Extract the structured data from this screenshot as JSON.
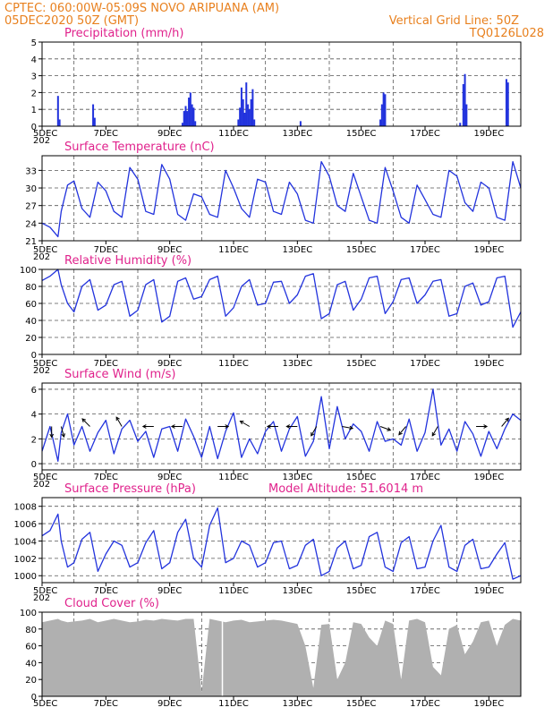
{
  "header": {
    "line1": "CPTEC:   060:00W-05:09S   NOVO ARIPUANA (AM)",
    "line2": "05DEC2020 50Z (GMT)",
    "grid_note": "Vertical Grid Line: 50Z",
    "code": "TQ0126L028"
  },
  "x_axis": {
    "tick_labels": [
      "5DEC",
      "7DEC",
      "9DEC",
      "11DEC",
      "13DEC",
      "15DEC",
      "17DEC",
      "19DEC"
    ],
    "tick_days": [
      0,
      2,
      4,
      6,
      8,
      10,
      12,
      14
    ],
    "vertical_grid_days": [
      1,
      3,
      5,
      7,
      9,
      11,
      13
    ],
    "x_range_days": [
      0,
      15
    ],
    "year_fragment": "202"
  },
  "colors": {
    "line": "#2233dd",
    "bars": "#2233dd",
    "cloud": "#b0b0b0",
    "title": "#e0228c",
    "header": "#e8801e",
    "arrows": "#000000"
  },
  "chart_data": [
    {
      "id": "precip",
      "type": "bar",
      "title": "Precipitation (mm/h)",
      "ylim": [
        0,
        5
      ],
      "yticks": [
        0,
        1,
        2,
        3,
        4,
        5
      ],
      "x_unit": "days since 05DEC2020 00Z",
      "points": [
        [
          0.5,
          1.8
        ],
        [
          0.55,
          0.4
        ],
        [
          1.6,
          1.3
        ],
        [
          1.65,
          0.5
        ],
        [
          4.4,
          0.2
        ],
        [
          4.45,
          0.9
        ],
        [
          4.5,
          1.2
        ],
        [
          4.55,
          0.9
        ],
        [
          4.6,
          1.7
        ],
        [
          4.65,
          2.0
        ],
        [
          4.7,
          1.3
        ],
        [
          4.75,
          1.1
        ],
        [
          4.8,
          0.3
        ],
        [
          6.15,
          0.4
        ],
        [
          6.2,
          1.1
        ],
        [
          6.25,
          2.3
        ],
        [
          6.3,
          1.6
        ],
        [
          6.35,
          0.8
        ],
        [
          6.4,
          2.6
        ],
        [
          6.45,
          1.3
        ],
        [
          6.5,
          1.0
        ],
        [
          6.55,
          1.6
        ],
        [
          6.6,
          2.2
        ],
        [
          6.65,
          0.4
        ],
        [
          8.1,
          0.3
        ],
        [
          10.6,
          0.4
        ],
        [
          10.65,
          1.3
        ],
        [
          10.7,
          2.0
        ],
        [
          10.75,
          1.9
        ],
        [
          13.1,
          0.2
        ],
        [
          13.2,
          2.5
        ],
        [
          13.25,
          3.1
        ],
        [
          13.3,
          1.3
        ],
        [
          14.55,
          2.8
        ],
        [
          14.6,
          2.6
        ]
      ]
    },
    {
      "id": "temp",
      "type": "line",
      "title": "Surface Temperature (nC)",
      "ylim": [
        21,
        35.5
      ],
      "yticks": [
        21,
        24,
        27,
        30,
        33
      ],
      "x": [
        0.0,
        0.25,
        0.5,
        0.6,
        0.8,
        1.0,
        1.25,
        1.5,
        1.75,
        2.0,
        2.25,
        2.5,
        2.75,
        3.0,
        3.25,
        3.5,
        3.75,
        4.0,
        4.25,
        4.5,
        4.75,
        5.0,
        5.25,
        5.5,
        5.75,
        6.0,
        6.25,
        6.5,
        6.75,
        7.0,
        7.25,
        7.5,
        7.75,
        8.0,
        8.25,
        8.5,
        8.75,
        9.0,
        9.25,
        9.5,
        9.75,
        10.0,
        10.25,
        10.5,
        10.75,
        11.0,
        11.25,
        11.5,
        11.75,
        12.0,
        12.25,
        12.5,
        12.75,
        13.0,
        13.25,
        13.5,
        13.75,
        14.0,
        14.25,
        14.5,
        14.75,
        15.0
      ],
      "y": [
        24.0,
        23.3,
        21.7,
        26.0,
        30.5,
        31.2,
        26.5,
        25.0,
        31.0,
        29.5,
        26.0,
        25.0,
        33.5,
        31.5,
        26.0,
        25.5,
        34.0,
        31.5,
        25.5,
        24.5,
        29.0,
        28.5,
        25.5,
        25.0,
        33.0,
        30.0,
        26.5,
        25.0,
        31.5,
        31.0,
        26.0,
        25.5,
        31.0,
        29.0,
        24.5,
        24.0,
        34.5,
        32.0,
        27.0,
        26.0,
        32.5,
        28.5,
        24.5,
        24.0,
        33.5,
        29.5,
        25.0,
        24.0,
        30.5,
        28.0,
        25.5,
        25.0,
        33.0,
        32.0,
        27.5,
        26.0,
        31.0,
        30.0,
        25.0,
        24.5,
        34.5,
        30.0
      ]
    },
    {
      "id": "rh",
      "type": "line",
      "title": "Relative Humidity (%)",
      "ylim": [
        0,
        100
      ],
      "yticks": [
        0,
        20,
        40,
        60,
        80,
        100
      ],
      "x": [
        0.0,
        0.25,
        0.5,
        0.6,
        0.8,
        1.0,
        1.25,
        1.5,
        1.75,
        2.0,
        2.25,
        2.5,
        2.75,
        3.0,
        3.25,
        3.5,
        3.75,
        4.0,
        4.25,
        4.5,
        4.75,
        5.0,
        5.25,
        5.5,
        5.75,
        6.0,
        6.25,
        6.5,
        6.75,
        7.0,
        7.25,
        7.5,
        7.75,
        8.0,
        8.25,
        8.5,
        8.75,
        9.0,
        9.25,
        9.5,
        9.75,
        10.0,
        10.25,
        10.5,
        10.75,
        11.0,
        11.25,
        11.5,
        11.75,
        12.0,
        12.25,
        12.5,
        12.75,
        13.0,
        13.25,
        13.5,
        13.75,
        14.0,
        14.25,
        14.5,
        14.75,
        15.0
      ],
      "y": [
        87.0,
        92.0,
        100.0,
        82.0,
        60.0,
        50.0,
        80.0,
        88.0,
        52.0,
        58.0,
        82.0,
        86.0,
        45.0,
        52.0,
        82.0,
        88.0,
        38.0,
        45.0,
        86.0,
        90.0,
        65.0,
        68.0,
        88.0,
        92.0,
        45.0,
        55.0,
        80.0,
        88.0,
        58.0,
        60.0,
        85.0,
        86.0,
        60.0,
        70.0,
        92.0,
        95.0,
        42.0,
        48.0,
        82.0,
        86.0,
        52.0,
        65.0,
        90.0,
        92.0,
        48.0,
        62.0,
        88.0,
        90.0,
        60.0,
        70.0,
        86.0,
        88.0,
        45.0,
        48.0,
        80.0,
        84.0,
        58.0,
        62.0,
        90.0,
        92.0,
        32.0,
        50.0
      ]
    },
    {
      "id": "wind",
      "type": "line",
      "title": "Surface Wind (m/s)",
      "ylim": [
        -0.5,
        6.5
      ],
      "yticks": [
        0,
        2,
        4,
        6
      ],
      "x": [
        0.0,
        0.25,
        0.5,
        0.6,
        0.8,
        1.0,
        1.25,
        1.5,
        1.75,
        2.0,
        2.25,
        2.5,
        2.75,
        3.0,
        3.25,
        3.5,
        3.75,
        4.0,
        4.25,
        4.5,
        4.75,
        5.0,
        5.25,
        5.5,
        5.75,
        6.0,
        6.25,
        6.5,
        6.75,
        7.0,
        7.25,
        7.5,
        7.75,
        8.0,
        8.25,
        8.5,
        8.75,
        9.0,
        9.25,
        9.5,
        9.75,
        10.0,
        10.25,
        10.5,
        10.75,
        11.0,
        11.25,
        11.5,
        11.75,
        12.0,
        12.25,
        12.5,
        12.75,
        13.0,
        13.25,
        13.5,
        13.75,
        14.0,
        14.25,
        14.5,
        14.75,
        15.0
      ],
      "y": [
        1.0,
        3.0,
        0.2,
        2.5,
        4.0,
        1.5,
        3.0,
        1.0,
        2.5,
        3.5,
        0.8,
        2.8,
        3.5,
        1.8,
        2.6,
        0.5,
        2.8,
        3.0,
        1.0,
        3.6,
        2.2,
        0.5,
        3.0,
        0.4,
        2.6,
        4.1,
        0.5,
        2.0,
        0.8,
        2.6,
        3.4,
        1.0,
        2.8,
        3.8,
        0.6,
        1.8,
        5.4,
        1.2,
        4.6,
        2.0,
        3.2,
        2.6,
        1.0,
        3.4,
        1.8,
        2.0,
        1.5,
        3.6,
        1.0,
        2.5,
        6.0,
        1.5,
        2.8,
        1.0,
        3.4,
        2.4,
        0.6,
        2.6,
        1.2,
        2.8,
        4.0,
        3.5
      ],
      "arrows": [
        [
          0.3,
          180,
          3
        ],
        [
          0.6,
          165,
          3
        ],
        [
          1.5,
          315,
          3
        ],
        [
          2.5,
          330,
          3
        ],
        [
          3.5,
          270,
          3
        ],
        [
          4.4,
          270,
          3
        ],
        [
          5.5,
          90,
          3
        ],
        [
          6.5,
          300,
          3
        ],
        [
          7.4,
          270,
          3
        ],
        [
          8.0,
          270,
          3
        ],
        [
          8.6,
          210,
          3
        ],
        [
          9.4,
          100,
          3
        ],
        [
          10.6,
          110,
          3
        ],
        [
          11.4,
          220,
          3
        ],
        [
          12.4,
          210,
          3
        ],
        [
          13.6,
          90,
          3
        ],
        [
          14.4,
          40,
          3
        ]
      ]
    },
    {
      "id": "pressure",
      "type": "line",
      "title": "Surface Pressure (hPa)",
      "annotation": "Model Altitude: 51.6014 m",
      "ylim": [
        999.2,
        1009
      ],
      "yticks": [
        1000,
        1002,
        1004,
        1006,
        1008
      ],
      "x": [
        0.0,
        0.25,
        0.5,
        0.6,
        0.8,
        1.0,
        1.25,
        1.5,
        1.75,
        2.0,
        2.25,
        2.5,
        2.75,
        3.0,
        3.25,
        3.5,
        3.75,
        4.0,
        4.25,
        4.5,
        4.75,
        5.0,
        5.25,
        5.5,
        5.75,
        6.0,
        6.25,
        6.5,
        6.75,
        7.0,
        7.25,
        7.5,
        7.75,
        8.0,
        8.25,
        8.5,
        8.75,
        9.0,
        9.25,
        9.5,
        9.75,
        10.0,
        10.25,
        10.5,
        10.75,
        11.0,
        11.25,
        11.5,
        11.75,
        12.0,
        12.25,
        12.5,
        12.75,
        13.0,
        13.25,
        13.5,
        13.75,
        14.0,
        14.25,
        14.5,
        14.75,
        15.0
      ],
      "y": [
        1004.6,
        1005.2,
        1007.1,
        1004.0,
        1001.0,
        1001.5,
        1004.2,
        1005.0,
        1000.5,
        1002.5,
        1004.0,
        1003.5,
        1001.0,
        1001.5,
        1003.8,
        1005.2,
        1000.8,
        1001.5,
        1005.0,
        1006.5,
        1002.0,
        1001.0,
        1005.8,
        1007.8,
        1001.5,
        1002.0,
        1004.0,
        1003.5,
        1001.0,
        1001.5,
        1003.8,
        1004.0,
        1000.8,
        1001.2,
        1003.5,
        1004.2,
        1000.0,
        1000.5,
        1003.2,
        1004.0,
        1000.8,
        1001.2,
        1004.5,
        1005.0,
        1001.0,
        1000.5,
        1003.8,
        1004.5,
        1000.8,
        1001.0,
        1004.0,
        1005.8,
        1001.0,
        1000.5,
        1003.5,
        1004.2,
        1000.8,
        1001.0,
        1002.5,
        1003.8,
        999.6,
        1000.0
      ]
    },
    {
      "id": "cloud",
      "type": "area",
      "title": "Cloud Cover (%)",
      "ylim": [
        0,
        100
      ],
      "yticks": [
        0,
        20,
        40,
        60,
        80,
        100
      ],
      "x": [
        0.0,
        0.25,
        0.5,
        0.6,
        0.8,
        1.0,
        1.25,
        1.5,
        1.75,
        2.0,
        2.25,
        2.5,
        2.75,
        3.0,
        3.25,
        3.5,
        3.75,
        4.0,
        4.25,
        4.5,
        4.75,
        5.0,
        5.25,
        5.5,
        5.75,
        6.0,
        6.25,
        6.5,
        6.75,
        7.0,
        7.25,
        7.5,
        7.75,
        8.0,
        8.25,
        8.5,
        8.75,
        9.0,
        9.25,
        9.5,
        9.75,
        10.0,
        10.25,
        10.5,
        10.75,
        11.0,
        11.25,
        11.5,
        11.75,
        12.0,
        12.25,
        12.5,
        12.75,
        13.0,
        13.25,
        13.5,
        13.75,
        14.0,
        14.25,
        14.5,
        14.75,
        15.0
      ],
      "y": [
        88.0,
        90.0,
        92.0,
        90.0,
        88.0,
        89.0,
        90.0,
        92.0,
        88.0,
        90.0,
        92.0,
        90.0,
        88.0,
        89.0,
        91.0,
        90.0,
        92.0,
        91.0,
        90.0,
        92.0,
        92.0,
        5.0,
        92.0,
        90.0,
        88.0,
        90.0,
        91.0,
        88.0,
        89.0,
        90.0,
        91.0,
        90.0,
        88.0,
        86.0,
        60.0,
        10.0,
        85.0,
        86.0,
        20.0,
        40.0,
        88.0,
        86.0,
        70.0,
        60.0,
        90.0,
        86.0,
        20.0,
        90.0,
        92.0,
        88.0,
        35.0,
        25.0,
        80.0,
        85.0,
        50.0,
        65.0,
        88.0,
        90.0,
        60.0,
        85.0,
        92.0,
        90.0
      ]
    }
  ]
}
